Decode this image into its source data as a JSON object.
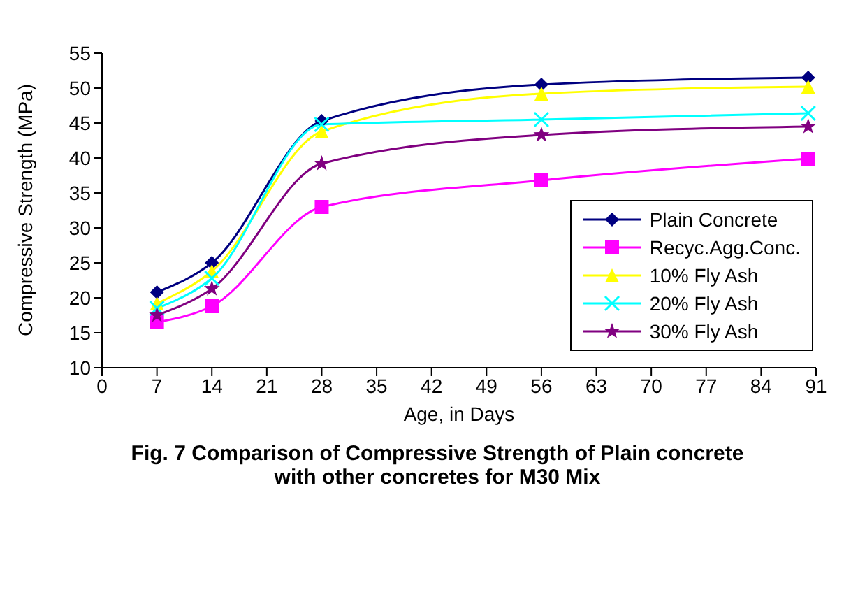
{
  "chart_data": {
    "type": "line",
    "title": "Fig. 7  Comparison of Compressive Strength of Plain concrete with other concretes for M30 Mix",
    "xlabel": "Age, in Days",
    "ylabel": "Compressive Strength (MPa)",
    "x": [
      7,
      14,
      28,
      56,
      90
    ],
    "series": [
      {
        "name": "Plain Concrete",
        "color": "#000080",
        "marker": "diamond",
        "values": [
          20.8,
          25,
          45.3,
          50.5,
          51.5
        ]
      },
      {
        "name": "Recyc.Agg.Conc.",
        "color": "#ff00ff",
        "marker": "square",
        "values": [
          16.5,
          18.8,
          33,
          36.8,
          39.9
        ]
      },
      {
        "name": "10% Fly Ash",
        "color": "#ffff00",
        "marker": "triangle",
        "values": [
          19.2,
          23.8,
          43.8,
          49.2,
          50.2
        ]
      },
      {
        "name": "20% Fly Ash",
        "color": "#00ffff",
        "marker": "cross",
        "values": [
          18.5,
          22.8,
          44.8,
          45.5,
          46.4
        ]
      },
      {
        "name": "30% Fly Ash",
        "color": "#800080",
        "marker": "star",
        "values": [
          17.5,
          21.3,
          39.2,
          43.3,
          44.5
        ]
      }
    ],
    "xlim": [
      0,
      91
    ],
    "xticks": [
      0,
      7,
      14,
      21,
      28,
      35,
      42,
      49,
      56,
      63,
      70,
      77,
      84,
      91
    ],
    "ylim": [
      10,
      55
    ],
    "yticks": [
      10,
      15,
      20,
      25,
      30,
      35,
      40,
      45,
      50,
      55
    ],
    "grid": false,
    "legend": "right"
  }
}
